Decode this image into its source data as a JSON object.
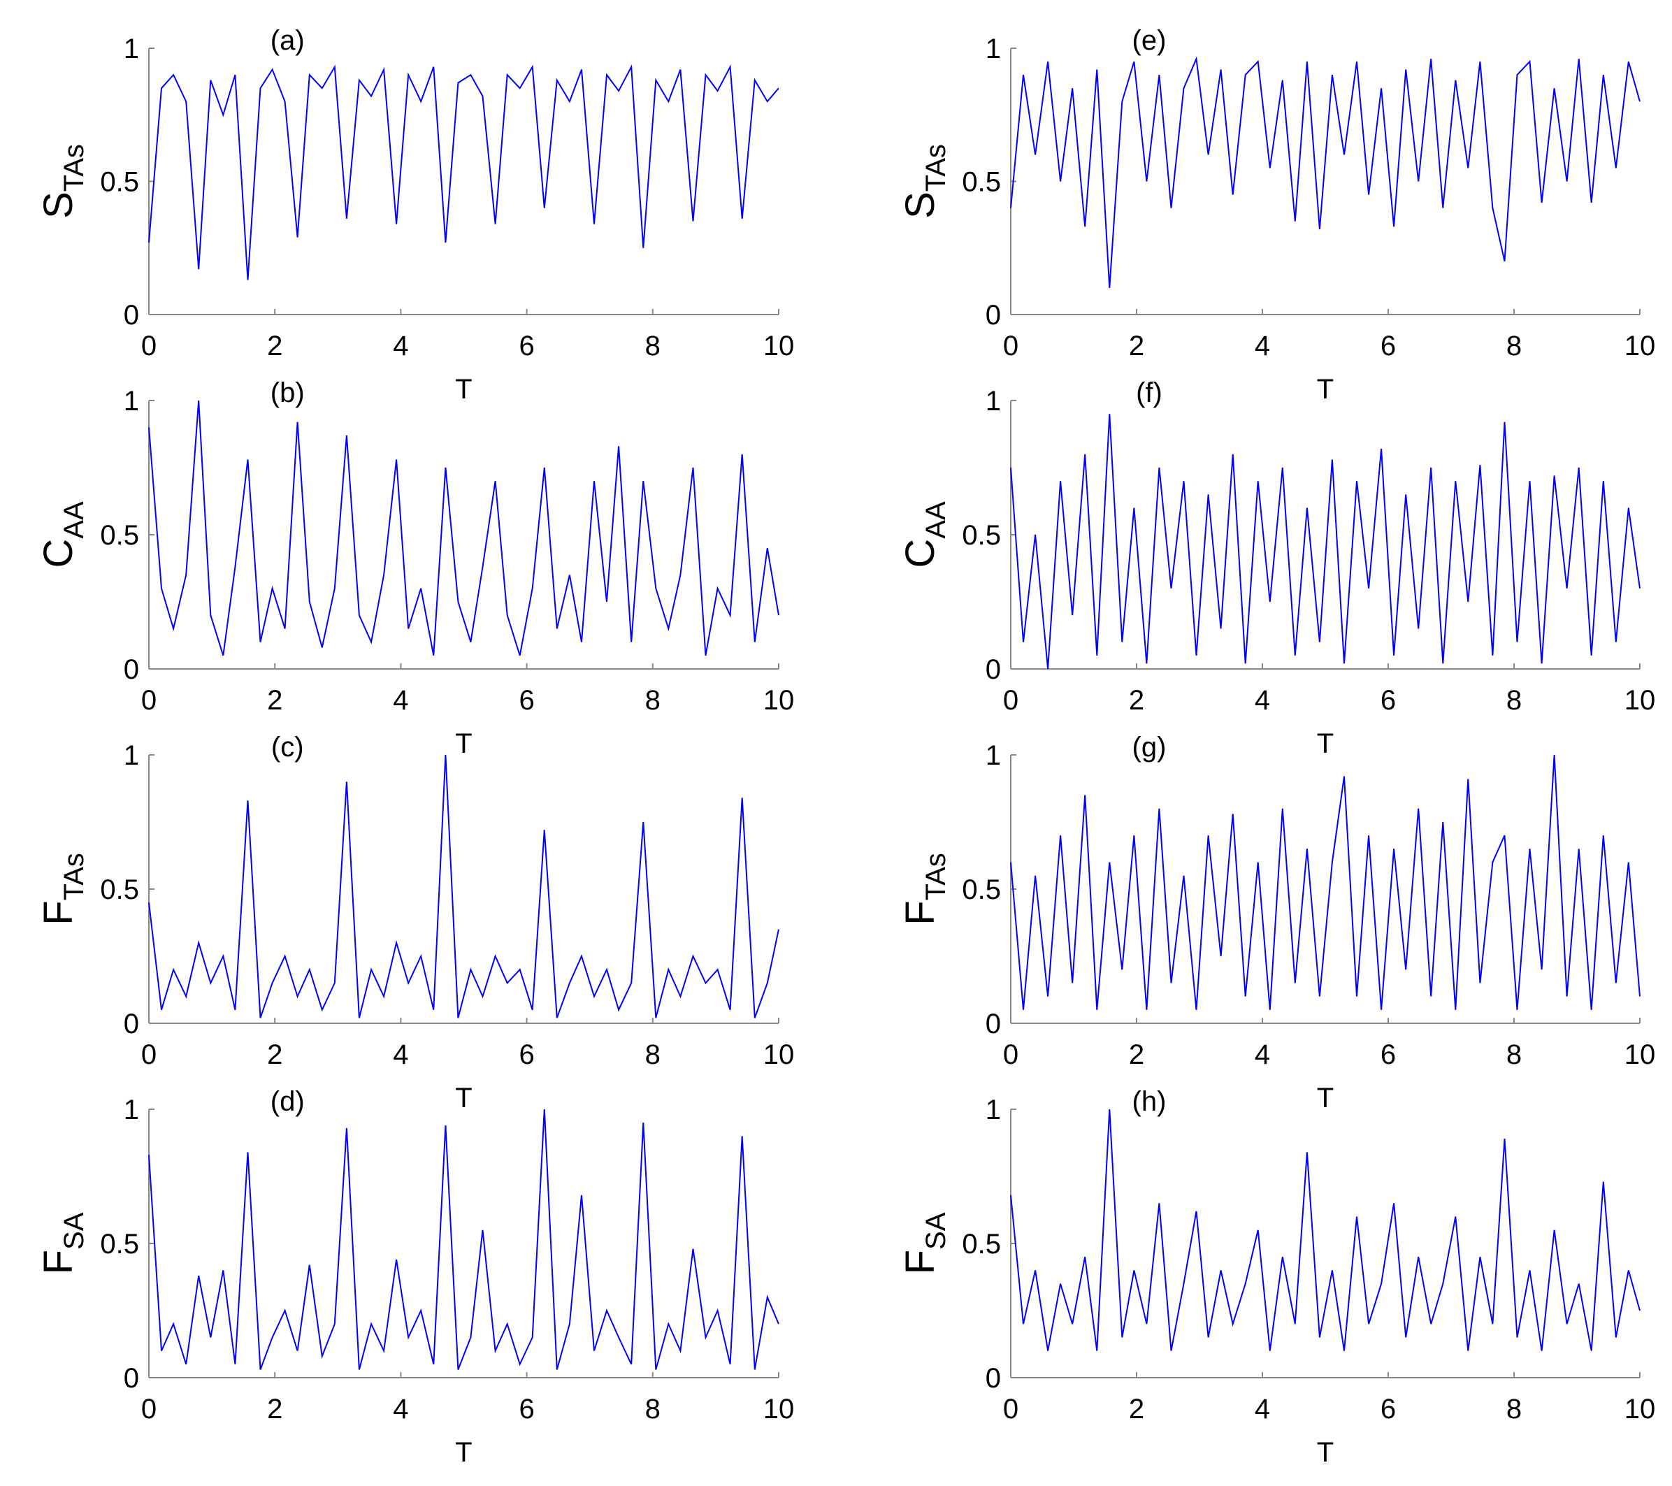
{
  "chart_data": [
    {
      "type": "line",
      "label": "(a)",
      "ylabel": "S",
      "ylabel_sub": "TAs",
      "xlabel": "T",
      "color": "#0000ff",
      "xlim": [
        0,
        10
      ],
      "ylim": [
        0,
        1
      ],
      "xticks": [
        0,
        2,
        4,
        6,
        8,
        10
      ],
      "yticks": [
        0,
        0.5,
        1
      ],
      "x": [
        0,
        0.2,
        0.39,
        0.59,
        0.79,
        0.98,
        1.18,
        1.37,
        1.57,
        1.77,
        1.96,
        2.16,
        2.36,
        2.55,
        2.75,
        2.95,
        3.14,
        3.34,
        3.53,
        3.73,
        3.93,
        4.12,
        4.32,
        4.52,
        4.71,
        4.91,
        5.11,
        5.3,
        5.5,
        5.69,
        5.89,
        6.09,
        6.28,
        6.48,
        6.68,
        6.87,
        7.07,
        7.27,
        7.46,
        7.66,
        7.85,
        8.05,
        8.25,
        8.44,
        8.64,
        8.84,
        9.03,
        9.23,
        9.42,
        9.62,
        9.82,
        10
      ],
      "values": [
        0.27,
        0.85,
        0.9,
        0.8,
        0.17,
        0.88,
        0.75,
        0.9,
        0.13,
        0.85,
        0.92,
        0.8,
        0.29,
        0.9,
        0.85,
        0.93,
        0.36,
        0.88,
        0.82,
        0.92,
        0.34,
        0.9,
        0.8,
        0.93,
        0.27,
        0.87,
        0.9,
        0.82,
        0.34,
        0.9,
        0.85,
        0.93,
        0.4,
        0.88,
        0.8,
        0.92,
        0.34,
        0.9,
        0.84,
        0.93,
        0.25,
        0.88,
        0.8,
        0.92,
        0.35,
        0.9,
        0.84,
        0.93,
        0.36,
        0.88,
        0.8,
        0.85
      ]
    },
    {
      "type": "line",
      "label": "(b)",
      "ylabel": "C",
      "ylabel_sub": "AA",
      "xlabel": "T",
      "color": "#0000ff",
      "xlim": [
        0,
        10
      ],
      "ylim": [
        0,
        1
      ],
      "xticks": [
        0,
        2,
        4,
        6,
        8,
        10
      ],
      "yticks": [
        0,
        0.5,
        1
      ],
      "x": [
        0,
        0.2,
        0.39,
        0.59,
        0.79,
        0.98,
        1.18,
        1.37,
        1.57,
        1.77,
        1.96,
        2.16,
        2.36,
        2.55,
        2.75,
        2.95,
        3.14,
        3.34,
        3.53,
        3.73,
        3.93,
        4.12,
        4.32,
        4.52,
        4.71,
        4.91,
        5.11,
        5.3,
        5.5,
        5.69,
        5.89,
        6.09,
        6.28,
        6.48,
        6.68,
        6.87,
        7.07,
        7.27,
        7.46,
        7.66,
        7.85,
        8.05,
        8.25,
        8.44,
        8.64,
        8.84,
        9.03,
        9.23,
        9.42,
        9.62,
        9.82,
        10
      ],
      "values": [
        0.9,
        0.3,
        0.15,
        0.35,
        1.0,
        0.2,
        0.05,
        0.38,
        0.78,
        0.1,
        0.3,
        0.15,
        0.92,
        0.25,
        0.08,
        0.3,
        0.87,
        0.2,
        0.1,
        0.35,
        0.78,
        0.15,
        0.3,
        0.05,
        0.75,
        0.25,
        0.1,
        0.38,
        0.7,
        0.2,
        0.05,
        0.3,
        0.75,
        0.15,
        0.35,
        0.1,
        0.7,
        0.25,
        0.83,
        0.1,
        0.7,
        0.3,
        0.15,
        0.35,
        0.75,
        0.05,
        0.3,
        0.2,
        0.8,
        0.1,
        0.45,
        0.2
      ]
    },
    {
      "type": "line",
      "label": "(c)",
      "ylabel": "F",
      "ylabel_sub": "TAs",
      "xlabel": "T",
      "color": "#0000ff",
      "xlim": [
        0,
        10
      ],
      "ylim": [
        0,
        1
      ],
      "xticks": [
        0,
        2,
        4,
        6,
        8,
        10
      ],
      "yticks": [
        0,
        0.5,
        1
      ],
      "x": [
        0,
        0.2,
        0.39,
        0.59,
        0.79,
        0.98,
        1.18,
        1.37,
        1.57,
        1.77,
        1.96,
        2.16,
        2.36,
        2.55,
        2.75,
        2.95,
        3.14,
        3.34,
        3.53,
        3.73,
        3.93,
        4.12,
        4.32,
        4.52,
        4.71,
        4.91,
        5.11,
        5.3,
        5.5,
        5.69,
        5.89,
        6.09,
        6.28,
        6.48,
        6.68,
        6.87,
        7.07,
        7.27,
        7.46,
        7.66,
        7.85,
        8.05,
        8.25,
        8.44,
        8.64,
        8.84,
        9.03,
        9.23,
        9.42,
        9.62,
        9.82,
        10
      ],
      "values": [
        0.45,
        0.05,
        0.2,
        0.1,
        0.3,
        0.15,
        0.25,
        0.05,
        0.83,
        0.02,
        0.15,
        0.25,
        0.1,
        0.2,
        0.05,
        0.15,
        0.9,
        0.02,
        0.2,
        0.1,
        0.3,
        0.15,
        0.25,
        0.05,
        1.0,
        0.02,
        0.2,
        0.1,
        0.25,
        0.15,
        0.2,
        0.05,
        0.72,
        0.02,
        0.15,
        0.25,
        0.1,
        0.2,
        0.05,
        0.15,
        0.75,
        0.02,
        0.2,
        0.1,
        0.25,
        0.15,
        0.2,
        0.05,
        0.84,
        0.02,
        0.15,
        0.35
      ]
    },
    {
      "type": "line",
      "label": "(d)",
      "ylabel": "F",
      "ylabel_sub": "SA",
      "xlabel": "T",
      "color": "#0000ff",
      "xlim": [
        0,
        10
      ],
      "ylim": [
        0,
        1
      ],
      "xticks": [
        0,
        2,
        4,
        6,
        8,
        10
      ],
      "yticks": [
        0,
        0.5,
        1
      ],
      "x": [
        0,
        0.2,
        0.39,
        0.59,
        0.79,
        0.98,
        1.18,
        1.37,
        1.57,
        1.77,
        1.96,
        2.16,
        2.36,
        2.55,
        2.75,
        2.95,
        3.14,
        3.34,
        3.53,
        3.73,
        3.93,
        4.12,
        4.32,
        4.52,
        4.71,
        4.91,
        5.11,
        5.3,
        5.5,
        5.69,
        5.89,
        6.09,
        6.28,
        6.48,
        6.68,
        6.87,
        7.07,
        7.27,
        7.46,
        7.66,
        7.85,
        8.05,
        8.25,
        8.44,
        8.64,
        8.84,
        9.03,
        9.23,
        9.42,
        9.62,
        9.82,
        10
      ],
      "values": [
        0.83,
        0.1,
        0.2,
        0.05,
        0.38,
        0.15,
        0.4,
        0.05,
        0.84,
        0.03,
        0.15,
        0.25,
        0.1,
        0.42,
        0.08,
        0.2,
        0.93,
        0.03,
        0.2,
        0.1,
        0.44,
        0.15,
        0.25,
        0.05,
        0.94,
        0.03,
        0.15,
        0.55,
        0.1,
        0.2,
        0.05,
        0.15,
        1.0,
        0.03,
        0.2,
        0.68,
        0.1,
        0.25,
        0.15,
        0.05,
        0.95,
        0.03,
        0.2,
        0.1,
        0.48,
        0.15,
        0.25,
        0.05,
        0.9,
        0.03,
        0.3,
        0.2
      ]
    },
    {
      "type": "line",
      "label": "(e)",
      "ylabel": "S",
      "ylabel_sub": "TAs",
      "xlabel": "T",
      "color": "#0000ff",
      "xlim": [
        0,
        10
      ],
      "ylim": [
        0,
        1
      ],
      "xticks": [
        0,
        2,
        4,
        6,
        8,
        10
      ],
      "yticks": [
        0,
        0.5,
        1
      ],
      "x": [
        0,
        0.2,
        0.39,
        0.59,
        0.79,
        0.98,
        1.18,
        1.37,
        1.57,
        1.77,
        1.96,
        2.16,
        2.36,
        2.55,
        2.75,
        2.95,
        3.14,
        3.34,
        3.53,
        3.73,
        3.93,
        4.12,
        4.32,
        4.52,
        4.71,
        4.91,
        5.11,
        5.3,
        5.5,
        5.69,
        5.89,
        6.09,
        6.28,
        6.48,
        6.68,
        6.87,
        7.07,
        7.27,
        7.46,
        7.66,
        7.85,
        8.05,
        8.25,
        8.44,
        8.64,
        8.84,
        9.03,
        9.23,
        9.42,
        9.62,
        9.82,
        10
      ],
      "values": [
        0.4,
        0.9,
        0.6,
        0.95,
        0.5,
        0.85,
        0.33,
        0.92,
        0.1,
        0.8,
        0.95,
        0.5,
        0.9,
        0.4,
        0.85,
        0.96,
        0.6,
        0.92,
        0.45,
        0.9,
        0.95,
        0.55,
        0.88,
        0.35,
        0.95,
        0.32,
        0.9,
        0.6,
        0.95,
        0.45,
        0.85,
        0.33,
        0.92,
        0.5,
        0.96,
        0.4,
        0.88,
        0.55,
        0.95,
        0.4,
        0.2,
        0.9,
        0.95,
        0.42,
        0.85,
        0.5,
        0.96,
        0.42,
        0.9,
        0.55,
        0.95,
        0.8
      ]
    },
    {
      "type": "line",
      "label": "(f)",
      "ylabel": "C",
      "ylabel_sub": "AA",
      "xlabel": "T",
      "color": "#0000ff",
      "xlim": [
        0,
        10
      ],
      "ylim": [
        0,
        1
      ],
      "xticks": [
        0,
        2,
        4,
        6,
        8,
        10
      ],
      "yticks": [
        0,
        0.5,
        1
      ],
      "x": [
        0,
        0.2,
        0.39,
        0.59,
        0.79,
        0.98,
        1.18,
        1.37,
        1.57,
        1.77,
        1.96,
        2.16,
        2.36,
        2.55,
        2.75,
        2.95,
        3.14,
        3.34,
        3.53,
        3.73,
        3.93,
        4.12,
        4.32,
        4.52,
        4.71,
        4.91,
        5.11,
        5.3,
        5.5,
        5.69,
        5.89,
        6.09,
        6.28,
        6.48,
        6.68,
        6.87,
        7.07,
        7.27,
        7.46,
        7.66,
        7.85,
        8.05,
        8.25,
        8.44,
        8.64,
        8.84,
        9.03,
        9.23,
        9.42,
        9.62,
        9.82,
        10
      ],
      "values": [
        0.75,
        0.1,
        0.5,
        0.0,
        0.7,
        0.2,
        0.8,
        0.05,
        0.95,
        0.1,
        0.6,
        0.02,
        0.75,
        0.3,
        0.7,
        0.05,
        0.65,
        0.15,
        0.8,
        0.02,
        0.7,
        0.25,
        0.75,
        0.05,
        0.6,
        0.1,
        0.78,
        0.02,
        0.7,
        0.3,
        0.82,
        0.05,
        0.65,
        0.15,
        0.75,
        0.02,
        0.7,
        0.25,
        0.76,
        0.05,
        0.92,
        0.1,
        0.7,
        0.02,
        0.72,
        0.3,
        0.75,
        0.05,
        0.7,
        0.1,
        0.6,
        0.3
      ]
    },
    {
      "type": "line",
      "label": "(g)",
      "ylabel": "F",
      "ylabel_sub": "TAs",
      "xlabel": "T",
      "color": "#0000ff",
      "xlim": [
        0,
        10
      ],
      "ylim": [
        0,
        1
      ],
      "xticks": [
        0,
        2,
        4,
        6,
        8,
        10
      ],
      "yticks": [
        0,
        0.5,
        1
      ],
      "x": [
        0,
        0.2,
        0.39,
        0.59,
        0.79,
        0.98,
        1.18,
        1.37,
        1.57,
        1.77,
        1.96,
        2.16,
        2.36,
        2.55,
        2.75,
        2.95,
        3.14,
        3.34,
        3.53,
        3.73,
        3.93,
        4.12,
        4.32,
        4.52,
        4.71,
        4.91,
        5.11,
        5.3,
        5.5,
        5.69,
        5.89,
        6.09,
        6.28,
        6.48,
        6.68,
        6.87,
        7.07,
        7.27,
        7.46,
        7.66,
        7.85,
        8.05,
        8.25,
        8.44,
        8.64,
        8.84,
        9.03,
        9.23,
        9.42,
        9.62,
        9.82,
        10
      ],
      "values": [
        0.6,
        0.05,
        0.55,
        0.1,
        0.7,
        0.15,
        0.85,
        0.05,
        0.6,
        0.2,
        0.7,
        0.05,
        0.8,
        0.15,
        0.55,
        0.05,
        0.7,
        0.25,
        0.78,
        0.1,
        0.6,
        0.05,
        0.8,
        0.15,
        0.65,
        0.1,
        0.6,
        0.92,
        0.1,
        0.7,
        0.05,
        0.65,
        0.2,
        0.8,
        0.1,
        0.75,
        0.05,
        0.91,
        0.15,
        0.6,
        0.7,
        0.05,
        0.65,
        0.2,
        1.0,
        0.1,
        0.65,
        0.05,
        0.7,
        0.15,
        0.6,
        0.1
      ]
    },
    {
      "type": "line",
      "label": "(h)",
      "ylabel": "F",
      "ylabel_sub": "SA",
      "xlabel": "T",
      "color": "#0000ff",
      "xlim": [
        0,
        10
      ],
      "ylim": [
        0,
        1
      ],
      "xticks": [
        0,
        2,
        4,
        6,
        8,
        10
      ],
      "yticks": [
        0,
        0.5,
        1
      ],
      "x": [
        0,
        0.2,
        0.39,
        0.59,
        0.79,
        0.98,
        1.18,
        1.37,
        1.57,
        1.77,
        1.96,
        2.16,
        2.36,
        2.55,
        2.75,
        2.95,
        3.14,
        3.34,
        3.53,
        3.73,
        3.93,
        4.12,
        4.32,
        4.52,
        4.71,
        4.91,
        5.11,
        5.3,
        5.5,
        5.69,
        5.89,
        6.09,
        6.28,
        6.48,
        6.68,
        6.87,
        7.07,
        7.27,
        7.46,
        7.66,
        7.85,
        8.05,
        8.25,
        8.44,
        8.64,
        8.84,
        9.03,
        9.23,
        9.42,
        9.62,
        9.82,
        10
      ],
      "values": [
        0.68,
        0.2,
        0.4,
        0.1,
        0.35,
        0.2,
        0.45,
        0.1,
        1.0,
        0.15,
        0.4,
        0.2,
        0.65,
        0.1,
        0.35,
        0.62,
        0.15,
        0.4,
        0.2,
        0.35,
        0.55,
        0.1,
        0.45,
        0.2,
        0.84,
        0.15,
        0.4,
        0.1,
        0.6,
        0.2,
        0.35,
        0.65,
        0.15,
        0.45,
        0.2,
        0.35,
        0.6,
        0.1,
        0.45,
        0.2,
        0.89,
        0.15,
        0.4,
        0.1,
        0.55,
        0.2,
        0.35,
        0.1,
        0.73,
        0.15,
        0.4,
        0.25
      ]
    }
  ]
}
